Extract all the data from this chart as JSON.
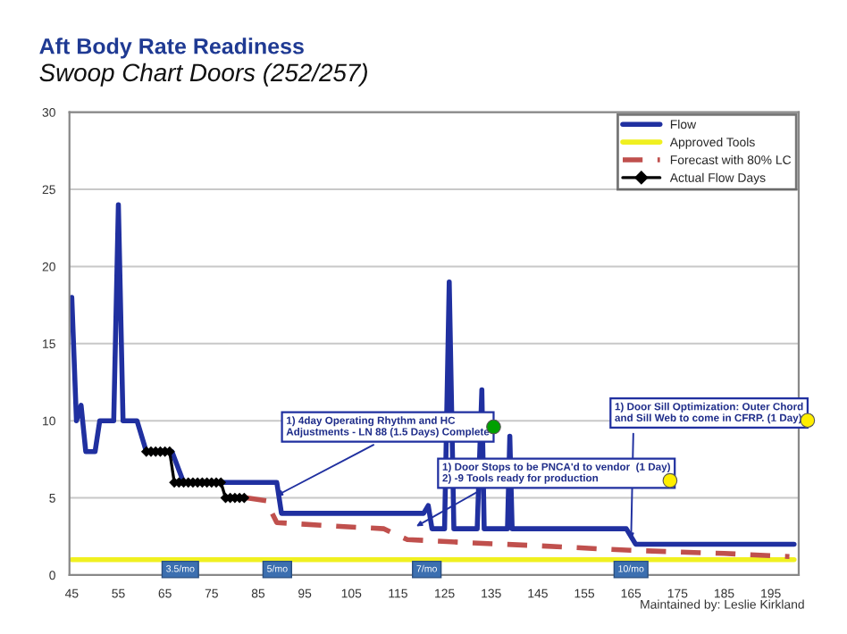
{
  "chart_data": {
    "type": "line",
    "title": "Aft Body Rate Readiness",
    "subtitle": "Swoop Chart Doors (252/257)",
    "xlim": [
      44.5,
      201
    ],
    "xticks": [
      45,
      55,
      65,
      75,
      85,
      95,
      105,
      115,
      125,
      135,
      145,
      155,
      165,
      175,
      185,
      195
    ],
    "ylim": [
      0,
      30
    ],
    "yticks": [
      0,
      5,
      10,
      15,
      20,
      25,
      30
    ],
    "grid": "y",
    "legend": "top right",
    "series": [
      {
        "name": "Flow",
        "color": "#2030a0",
        "line_style": "solid",
        "marker": "none",
        "x": [
          45,
          46,
          47,
          48,
          50,
          51,
          54,
          55,
          56,
          59,
          61,
          66.5,
          69,
          89,
          90,
          120.5,
          121.5,
          122.3,
          125,
          126,
          127,
          132,
          133,
          133.5,
          138.5,
          139,
          139.5,
          164,
          166,
          200
        ],
        "values": [
          18,
          10,
          11,
          8,
          8,
          10,
          10,
          24,
          10,
          10,
          8,
          8,
          6,
          6,
          4,
          4,
          4.5,
          3,
          3,
          19,
          3,
          3,
          12,
          3,
          3,
          9,
          3,
          3,
          2,
          2
        ]
      },
      {
        "name": "Approved Tools",
        "color": "#f0f020",
        "line_style": "solid",
        "marker": "none",
        "x": [
          45,
          200
        ],
        "values": [
          1,
          1
        ]
      },
      {
        "name": "Forecast with 80% LC",
        "color": "#c0504d",
        "line_style": "dashed",
        "marker": "none",
        "x": [
          82.5,
          87,
          88,
          89,
          100,
          112,
          114,
          117,
          130,
          145,
          165,
          185,
          199
        ],
        "values": [
          5,
          4.8,
          4,
          3.4,
          3.2,
          3.0,
          2.7,
          2.3,
          2.1,
          1.9,
          1.6,
          1.4,
          1.2
        ]
      },
      {
        "name": "Actual Flow Days",
        "color": "#000000",
        "line_style": "solid",
        "marker": "diamond",
        "x": [
          61,
          62,
          63,
          64,
          65,
          66,
          67,
          68,
          69,
          70,
          71,
          72,
          73,
          74,
          75,
          76,
          77,
          78,
          79,
          80,
          81,
          82
        ],
        "values": [
          8,
          8,
          8,
          8,
          8,
          8,
          6,
          6,
          6,
          6,
          6,
          6,
          6,
          6,
          6,
          6,
          6,
          5,
          5,
          5,
          5,
          5
        ]
      }
    ],
    "annotations": [
      {
        "text": "1) 4day Operating Rhythm and HC\nAdjustments - LN 88 (1.5 Days) Complete",
        "x": 88,
        "y": 5
      },
      {
        "text": "1) Door Stops to be PNCA'd to vendor  (1 Day)\n2) -9 Tools ready for production",
        "x": 118,
        "y": 3
      },
      {
        "text": "1) Door Sill Optimization: Outer Chord\nand Sill Web to come in CFRP. (1 Day)",
        "x": 165,
        "y": 2
      },
      "3.5/mo",
      "5/mo",
      "7/mo",
      "10/mo",
      "Maintained by: Leslie Kirkland"
    ]
  }
}
